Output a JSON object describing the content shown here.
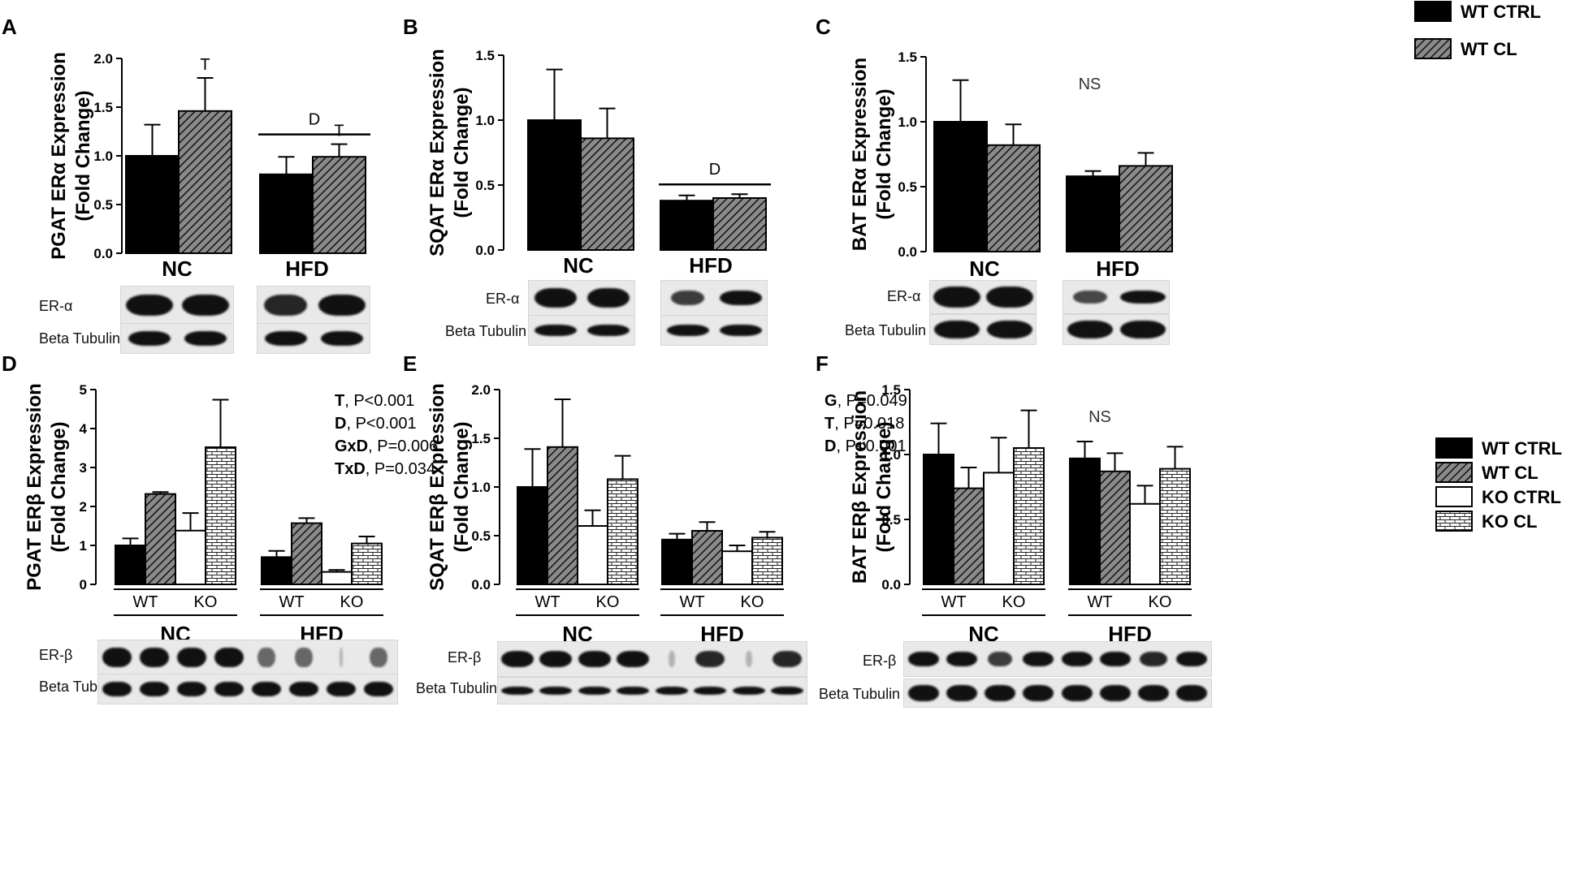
{
  "legend_top": {
    "items": [
      {
        "label": "WT CTRL",
        "fill": "solid"
      },
      {
        "label": "WT CL",
        "fill": "hatch"
      }
    ]
  },
  "legend_bottom": {
    "items": [
      {
        "label": "WT CTRL",
        "fill": "solid"
      },
      {
        "label": "WT CL",
        "fill": "hatch"
      },
      {
        "label": "KO CTRL",
        "fill": "white"
      },
      {
        "label": "KO CL",
        "fill": "brick"
      }
    ]
  },
  "colors": {
    "bar": "#000000",
    "hatch_bg": "#8a8a8a",
    "axis": "#000000"
  },
  "blot_labels": {
    "er_alpha": "ER-α",
    "er_beta": "ER-β",
    "tubulin": "Beta Tubulin"
  },
  "chart_data": [
    {
      "id": "A",
      "letter": "A",
      "type": "bar",
      "ylabel": [
        "PGAT ERα Expression",
        "(Fold Change)"
      ],
      "ylim": [
        0,
        2.0
      ],
      "yticks": [
        "0.0",
        "0.5",
        "1.0",
        "1.5",
        "2.0"
      ],
      "ytick_values": [
        0,
        0.5,
        1.0,
        1.5,
        2.0
      ],
      "groups": [
        "NC",
        "HFD"
      ],
      "series": [
        {
          "name": "WT CTRL",
          "values": [
            1.0,
            0.81
          ],
          "errors": [
            0.32,
            0.18
          ]
        },
        {
          "name": "WT CL",
          "values": [
            1.46,
            0.99
          ],
          "errors": [
            0.34,
            0.13
          ]
        }
      ],
      "annotations": [
        {
          "text": "T",
          "group": 0,
          "bar": 1
        },
        {
          "text": "T",
          "group": 1,
          "bar": 1
        },
        {
          "text": "D",
          "span_group": 1
        }
      ],
      "blot_rows": [
        "er_alpha",
        "tubulin"
      ]
    },
    {
      "id": "B",
      "letter": "B",
      "type": "bar",
      "ylabel": [
        "SQAT ERα Expression",
        "(Fold Change)"
      ],
      "ylim": [
        0,
        1.5
      ],
      "yticks": [
        "0.0",
        "0.5",
        "1.0",
        "1.5"
      ],
      "ytick_values": [
        0,
        0.5,
        1.0,
        1.5
      ],
      "groups": [
        "NC",
        "HFD"
      ],
      "series": [
        {
          "name": "WT CTRL",
          "values": [
            1.0,
            0.38
          ],
          "errors": [
            0.39,
            0.04
          ]
        },
        {
          "name": "WT CL",
          "values": [
            0.86,
            0.4
          ],
          "errors": [
            0.23,
            0.03
          ]
        }
      ],
      "annotations": [
        {
          "text": "D",
          "span_group": 1
        }
      ],
      "blot_rows": [
        "er_alpha",
        "tubulin"
      ]
    },
    {
      "id": "C",
      "letter": "C",
      "type": "bar",
      "ylabel": [
        "BAT ERα Expression",
        "(Fold Change)"
      ],
      "ylim": [
        0,
        1.5
      ],
      "yticks": [
        "0.0",
        "0.5",
        "1.0",
        "1.5"
      ],
      "ytick_values": [
        0,
        0.5,
        1.0,
        1.5
      ],
      "groups": [
        "NC",
        "HFD"
      ],
      "series": [
        {
          "name": "WT CTRL",
          "values": [
            1.0,
            0.58
          ],
          "errors": [
            0.32,
            0.04
          ]
        },
        {
          "name": "WT CL",
          "values": [
            0.82,
            0.66
          ],
          "errors": [
            0.16,
            0.1
          ]
        }
      ],
      "annotations": [
        {
          "text": "NS"
        }
      ],
      "blot_rows": [
        "er_alpha",
        "tubulin"
      ]
    },
    {
      "id": "D",
      "letter": "D",
      "type": "bar",
      "ylabel": [
        "PGAT ERβ Expression",
        "(Fold Change)"
      ],
      "ylim": [
        0,
        5
      ],
      "yticks": [
        "0",
        "1",
        "2",
        "3",
        "4",
        "5"
      ],
      "ytick_values": [
        0,
        1,
        2,
        3,
        4,
        5
      ],
      "groups": [
        "NC",
        "HFD"
      ],
      "subgroups": [
        "WT",
        "KO"
      ],
      "series": [
        {
          "name": "WT CTRL",
          "values": [
            1.0,
            0.7
          ],
          "errors": [
            0.18,
            0.16
          ]
        },
        {
          "name": "WT CL",
          "values": [
            2.32,
            1.57
          ],
          "errors": [
            0.05,
            0.13
          ]
        },
        {
          "name": "KO CTRL",
          "values": [
            1.38,
            0.32
          ],
          "errors": [
            0.45,
            0.05
          ]
        },
        {
          "name": "KO CL",
          "values": [
            3.52,
            1.05
          ],
          "errors": [
            1.22,
            0.18
          ]
        }
      ],
      "stats": [
        {
          "bold": "T",
          "rest": ", P<0.001"
        },
        {
          "bold": "D",
          "rest": ", P<0.001"
        },
        {
          "bold": "GxD",
          "rest": ", P=0.006"
        },
        {
          "bold": "TxD",
          "rest": ", P=0.034"
        }
      ],
      "blot_rows": [
        "er_beta",
        "tubulin"
      ]
    },
    {
      "id": "E",
      "letter": "E",
      "type": "bar",
      "ylabel": [
        "SQAT ERβ Expression",
        "(Fold Change)"
      ],
      "ylim": [
        0,
        2.0
      ],
      "yticks": [
        "0.0",
        "0.5",
        "1.0",
        "1.5",
        "2.0"
      ],
      "ytick_values": [
        0,
        0.5,
        1.0,
        1.5,
        2.0
      ],
      "groups": [
        "NC",
        "HFD"
      ],
      "subgroups": [
        "WT",
        "KO"
      ],
      "series": [
        {
          "name": "WT CTRL",
          "values": [
            1.0,
            0.46
          ],
          "errors": [
            0.39,
            0.06
          ]
        },
        {
          "name": "WT CL",
          "values": [
            1.41,
            0.55
          ],
          "errors": [
            0.49,
            0.09
          ]
        },
        {
          "name": "KO CTRL",
          "values": [
            0.6,
            0.34
          ],
          "errors": [
            0.16,
            0.06
          ]
        },
        {
          "name": "KO CL",
          "values": [
            1.08,
            0.48
          ],
          "errors": [
            0.24,
            0.06
          ]
        }
      ],
      "stats": [
        {
          "bold": "G",
          "rest": ", P=0.049"
        },
        {
          "bold": "T",
          "rest": ", P=0.018"
        },
        {
          "bold": "D",
          "rest": ", P<0.001"
        }
      ],
      "blot_rows": [
        "er_beta",
        "tubulin"
      ]
    },
    {
      "id": "F",
      "letter": "F",
      "type": "bar",
      "ylabel": [
        "BAT ERβ Expression",
        "(Fold Change)"
      ],
      "ylim": [
        0,
        1.5
      ],
      "yticks": [
        "0.0",
        "0.5",
        "1.0",
        "1.5"
      ],
      "ytick_values": [
        0,
        0.5,
        1.0,
        1.5
      ],
      "groups": [
        "NC",
        "HFD"
      ],
      "subgroups": [
        "WT",
        "KO"
      ],
      "series": [
        {
          "name": "WT CTRL",
          "values": [
            1.0,
            0.97
          ],
          "errors": [
            0.24,
            0.13
          ]
        },
        {
          "name": "WT CL",
          "values": [
            0.74,
            0.87
          ],
          "errors": [
            0.16,
            0.14
          ]
        },
        {
          "name": "KO CTRL",
          "values": [
            0.86,
            0.62
          ],
          "errors": [
            0.27,
            0.14
          ]
        },
        {
          "name": "KO CL",
          "values": [
            1.05,
            0.89
          ],
          "errors": [
            0.29,
            0.17
          ]
        }
      ],
      "annotations": [
        {
          "text": "NS"
        }
      ],
      "blot_rows": [
        "er_beta",
        "tubulin"
      ]
    }
  ]
}
